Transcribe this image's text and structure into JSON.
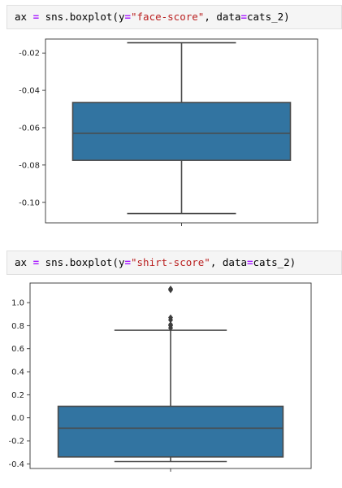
{
  "cells": [
    {
      "parts": [
        {
          "t": "ax ",
          "c": "kw"
        },
        {
          "t": "=",
          "c": "op"
        },
        {
          "t": " sns.boxplot(y",
          "c": "kw"
        },
        {
          "t": "=",
          "c": "op"
        },
        {
          "t": "\"face-score\"",
          "c": "str"
        },
        {
          "t": ", data",
          "c": "kw"
        },
        {
          "t": "=",
          "c": "op"
        },
        {
          "t": "cats_2)",
          "c": "kw"
        }
      ]
    },
    {
      "parts": [
        {
          "t": "ax ",
          "c": "kw"
        },
        {
          "t": "=",
          "c": "op"
        },
        {
          "t": " sns.boxplot(y",
          "c": "kw"
        },
        {
          "t": "=",
          "c": "op"
        },
        {
          "t": "\"shirt-score\"",
          "c": "str"
        },
        {
          "t": ", data",
          "c": "kw"
        },
        {
          "t": "=",
          "c": "op"
        },
        {
          "t": "cats_2)",
          "c": "kw"
        }
      ]
    }
  ],
  "chart_data": [
    {
      "type": "box",
      "ylabel": "",
      "yticks": [
        -0.02,
        -0.04,
        -0.06,
        -0.08,
        -0.1
      ],
      "ytick_labels": [
        "-0.02",
        "-0.04",
        "-0.06",
        "-0.08",
        "-0.10"
      ],
      "ylim": [
        -0.111,
        -0.0125
      ],
      "box": {
        "whisker_low": -0.106,
        "q1": -0.0775,
        "median": -0.063,
        "q3": -0.0465,
        "whisker_high": -0.0145
      },
      "outliers": [],
      "color": "#3274a1"
    },
    {
      "type": "box",
      "ylabel": "",
      "yticks": [
        1.0,
        0.8,
        0.6,
        0.4,
        0.2,
        0.0,
        -0.2,
        -0.4
      ],
      "ytick_labels": [
        "1.0",
        "0.8",
        "0.6",
        "0.4",
        "0.2",
        "0.0",
        "-0.2",
        "-0.4"
      ],
      "ylim": [
        -0.44,
        1.17
      ],
      "box": {
        "whisker_low": -0.38,
        "q1": -0.34,
        "median": -0.09,
        "q3": 0.1,
        "whisker_high": 0.76
      },
      "outliers": [
        0.78,
        0.8,
        0.81,
        0.85,
        0.87,
        1.11,
        1.12
      ],
      "color": "#3274a1"
    }
  ]
}
